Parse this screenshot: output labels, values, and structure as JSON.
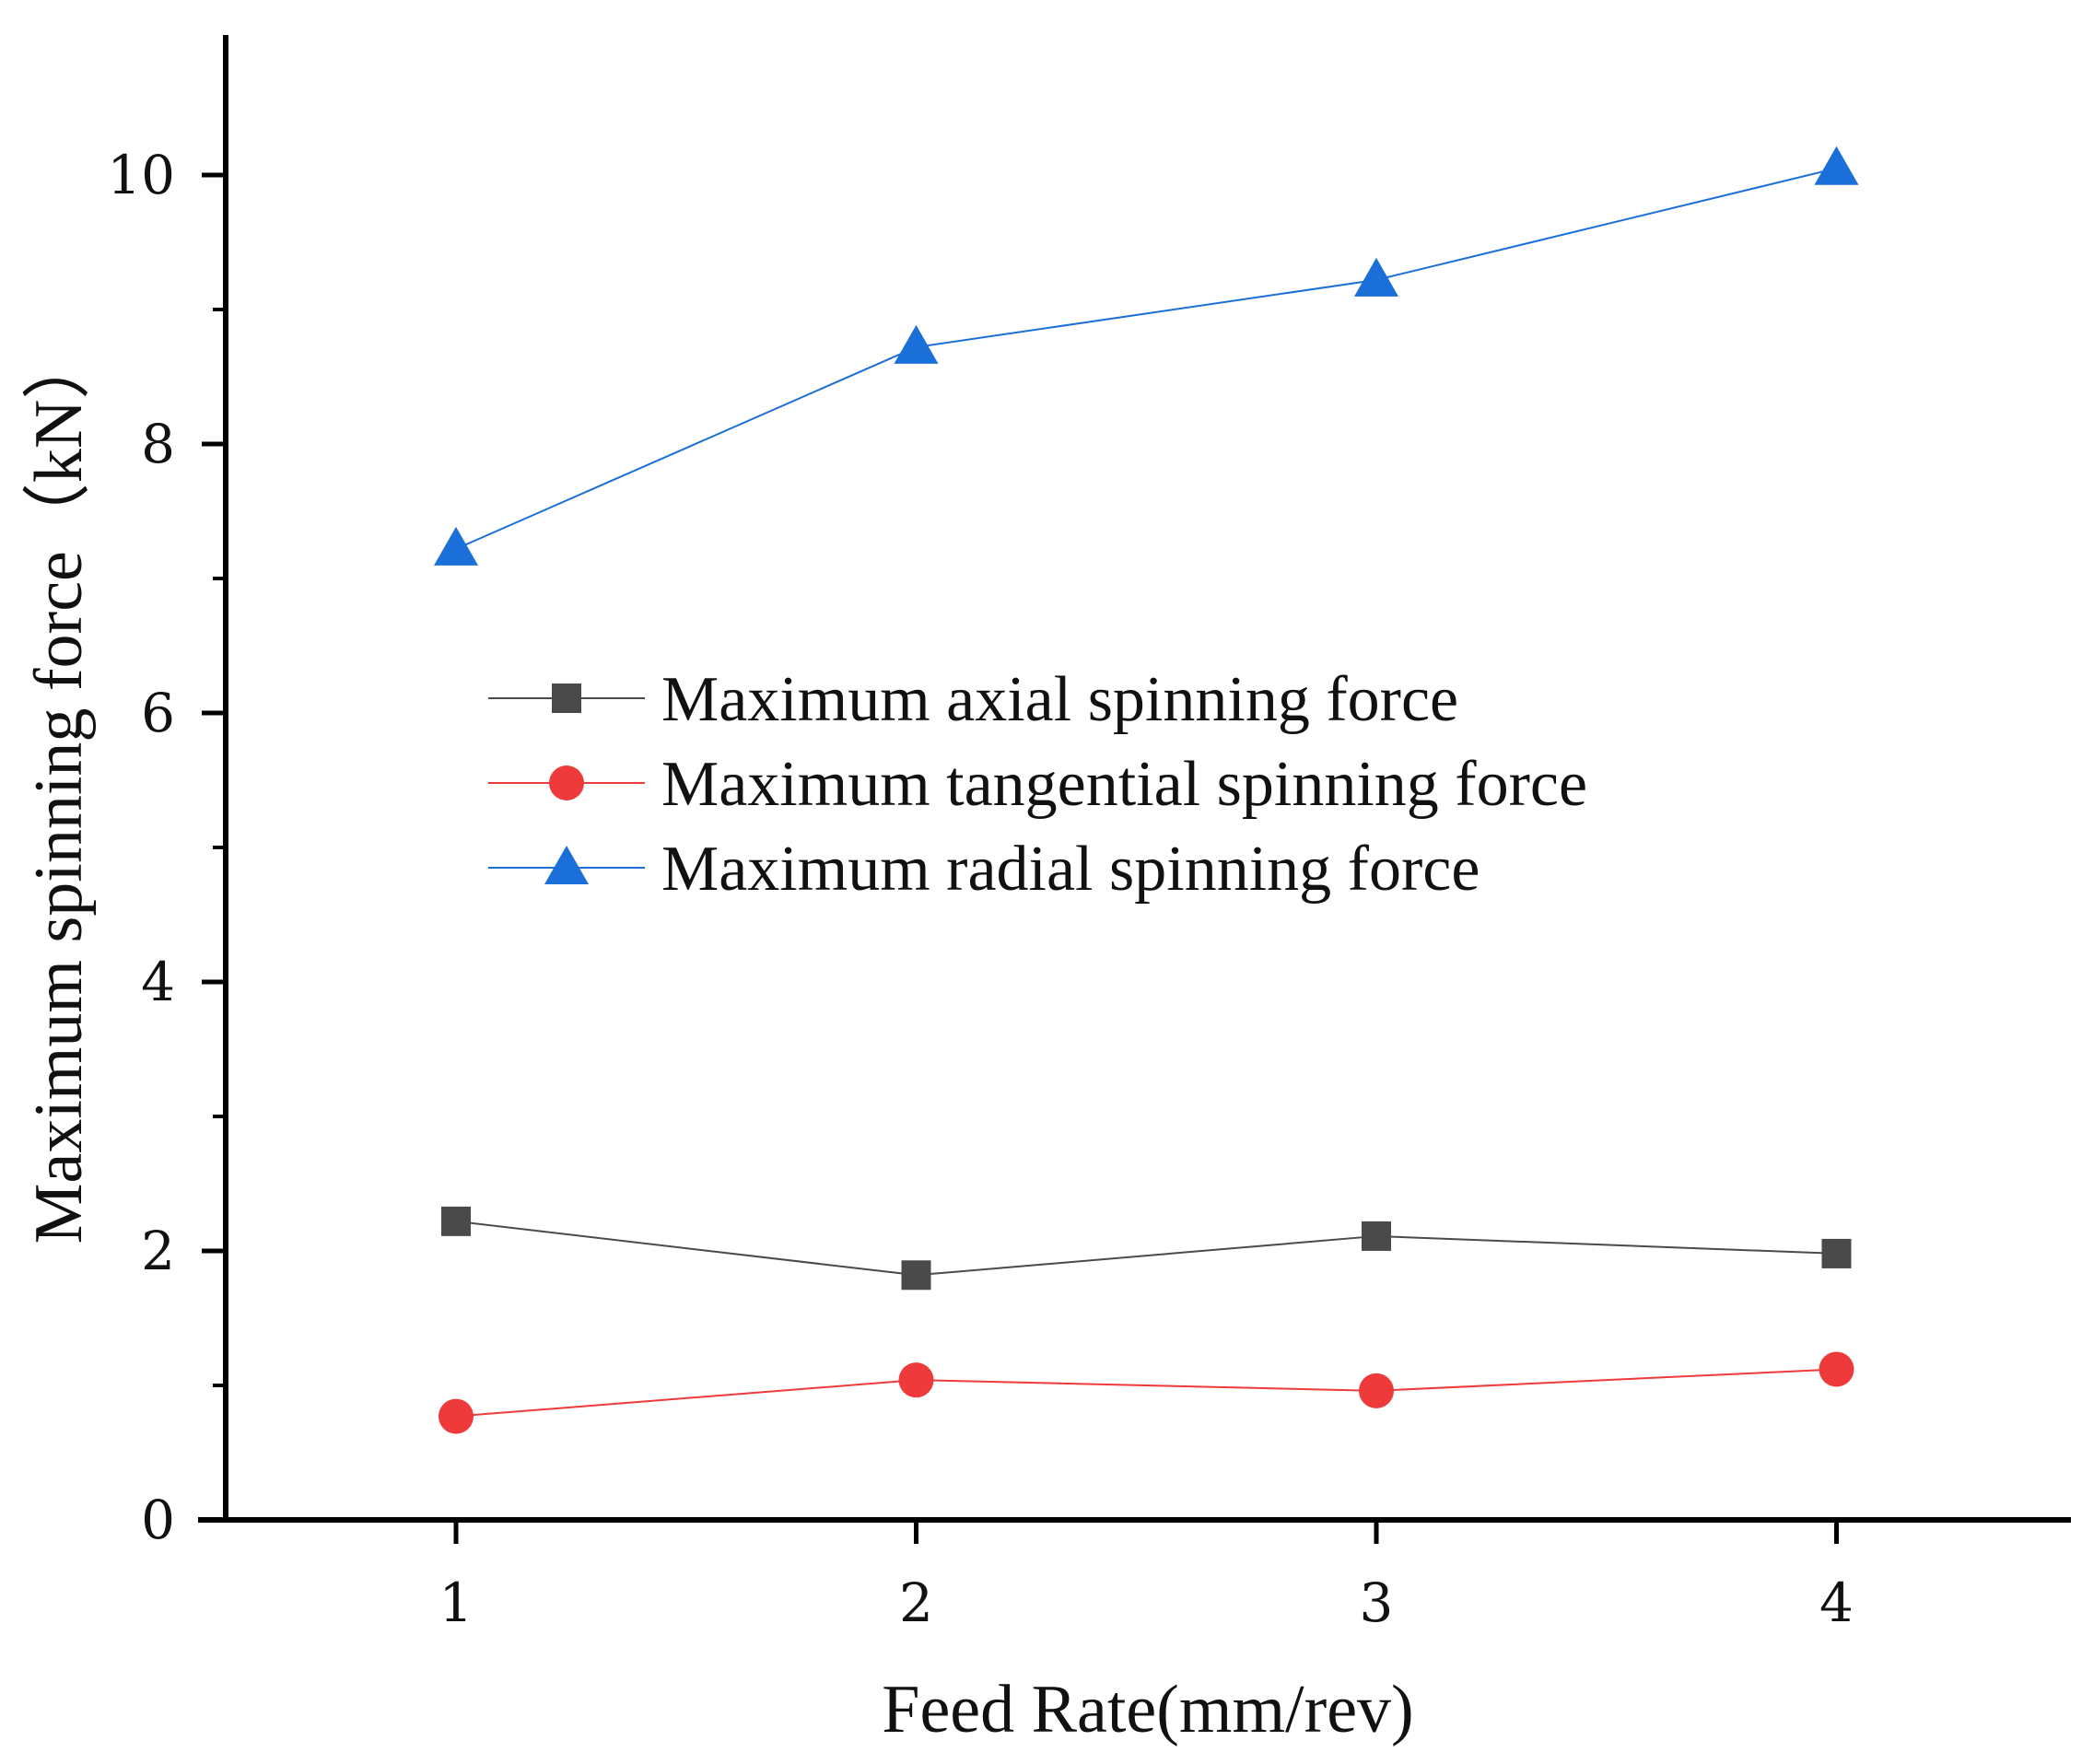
{
  "chart_data": {
    "type": "line",
    "xlabel": "Feed Rate(mm/rev)",
    "ylabel": "Maximum spinning force（kN）",
    "x": [
      1,
      2,
      3,
      4
    ],
    "xlim": [
      0.5,
      4.5
    ],
    "ylim": [
      0,
      11
    ],
    "x_ticks": [
      1,
      2,
      3,
      4
    ],
    "y_ticks": [
      0,
      2,
      4,
      6,
      8,
      10
    ],
    "y_minor_ticks": [
      1,
      3,
      5,
      7,
      9
    ],
    "grid": false,
    "legend_position": "center-left",
    "series": [
      {
        "name": "Maximum axial spinning force",
        "values": [
          2.22,
          1.82,
          2.11,
          1.98
        ],
        "color": "#4a4a4a",
        "marker": "square"
      },
      {
        "name": "Maximum tangential spinning force",
        "values": [
          0.77,
          1.04,
          0.96,
          1.12
        ],
        "color": "#ee3a3a",
        "marker": "circle"
      },
      {
        "name": "Maximum radial spinning force",
        "values": [
          7.22,
          8.72,
          9.22,
          10.05
        ],
        "color": "#1a6fd8",
        "marker": "triangle"
      }
    ]
  }
}
